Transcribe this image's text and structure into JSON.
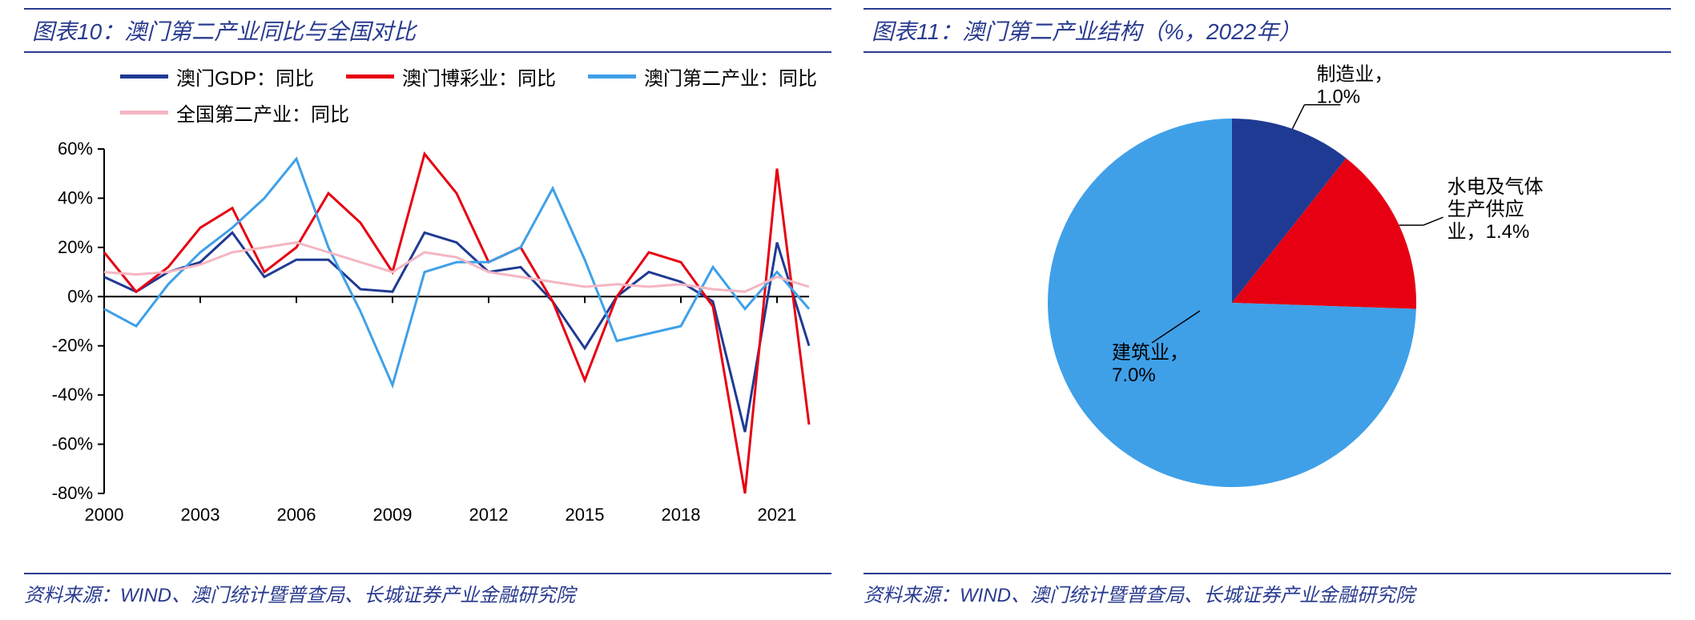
{
  "left": {
    "title": "图表10：澳门第二产业同比与全国对比",
    "source": "资料来源：WIND、澳门统计暨普查局、长城证券产业金融研究院",
    "legend": [
      {
        "label": "澳门GDP：同比",
        "color": "#1f3a93",
        "width": 5
      },
      {
        "label": "澳门博彩业：同比",
        "color": "#e60012",
        "width": 5
      },
      {
        "label": "澳门第二产业：同比",
        "color": "#3fa0e8",
        "width": 5
      },
      {
        "label": "全国第二产业：同比",
        "color": "#f5b6c2",
        "width": 5
      }
    ],
    "chart": {
      "type": "line",
      "x_start": 2000,
      "x_end": 2022,
      "x_ticks": [
        2000,
        2003,
        2006,
        2009,
        2012,
        2015,
        2018,
        2021
      ],
      "y_min": -80,
      "y_max": 60,
      "y_ticks": [
        -80,
        -60,
        -40,
        -20,
        0,
        20,
        40,
        60
      ],
      "y_suffix": "%",
      "grid_color": "#000000",
      "background": "#ffffff",
      "line_width": 3,
      "series": [
        {
          "color": "#1f3a93",
          "data": [
            8,
            2,
            10,
            14,
            26,
            8,
            15,
            15,
            3,
            2,
            26,
            22,
            10,
            12,
            -2,
            -21,
            0,
            10,
            6,
            -2,
            -55,
            22,
            -20
          ]
        },
        {
          "color": "#e60012",
          "data": [
            18,
            2,
            12,
            28,
            36,
            10,
            20,
            42,
            30,
            10,
            58,
            42,
            14,
            20,
            -2,
            -34,
            0,
            18,
            14,
            -4,
            -80,
            52,
            -52
          ]
        },
        {
          "color": "#3fa0e8",
          "data": [
            -5,
            -12,
            5,
            18,
            28,
            40,
            56,
            20,
            -6,
            -36,
            10,
            14,
            14,
            20,
            44,
            15,
            -18,
            -15,
            -12,
            12,
            -5,
            10,
            -5
          ]
        },
        {
          "color": "#f5b6c2",
          "data": [
            10,
            9,
            10,
            13,
            18,
            20,
            22,
            18,
            14,
            10,
            18,
            16,
            10,
            8,
            6,
            4,
            5,
            4,
            5,
            3,
            2,
            8,
            4
          ]
        }
      ]
    }
  },
  "right": {
    "title": "图表11：澳门第二产业结构（%，2022年）",
    "source": "资料来源：WIND、澳门统计暨普查局、长城证券产业金融研究院",
    "chart": {
      "type": "pie",
      "background": "#ffffff",
      "start_angle": -90,
      "slices": [
        {
          "label": "制造业，\n1.0%",
          "value": 1.0,
          "color": "#1f3a93",
          "label_pos": "top"
        },
        {
          "label": "水电及气体\n生产供应\n业，1.4%",
          "value": 1.4,
          "color": "#e60012",
          "label_pos": "right"
        },
        {
          "label": "建筑业，\n7.0%",
          "value": 7.0,
          "color": "#3fa0e8",
          "label_pos": "inside"
        }
      ],
      "line_color": "#000000"
    }
  }
}
